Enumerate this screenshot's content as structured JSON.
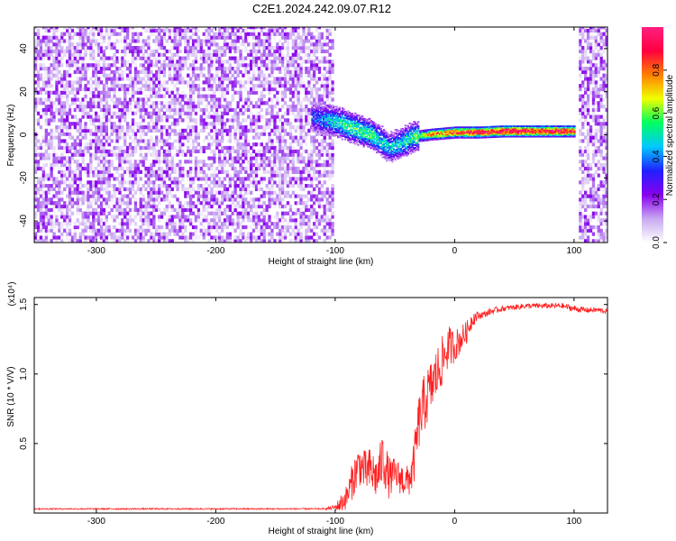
{
  "title": "C2E1.2024.242.09.07.R12",
  "chart_data": [
    {
      "type": "heatmap",
      "xlabel": "Height of straight line (km)",
      "ylabel": "Frequency (Hz)",
      "xlim": [
        -352,
        128
      ],
      "ylim": [
        -50,
        50
      ],
      "x_ticks": [
        -300,
        -200,
        -100,
        0,
        100
      ],
      "x_tick_labels": [
        "-300",
        "-200",
        "-100",
        "0",
        "100"
      ],
      "y_ticks": [
        -40,
        -20,
        0,
        20,
        40
      ],
      "y_tick_labels": [
        "-40",
        "-20",
        "0",
        "20",
        "40"
      ],
      "colorbar": {
        "label": "Normalized spectral amplitude",
        "range": [
          0,
          1
        ],
        "ticks": [
          0.0,
          0.2,
          0.4,
          0.6,
          0.8
        ],
        "tick_labels": [
          "0.0",
          "0.2",
          "0.4",
          "0.6",
          "0.8"
        ],
        "colormap": [
          "#ffffff",
          "#c8a8f0",
          "#8800ee",
          "#2020ff",
          "#00c8ff",
          "#00ff60",
          "#f0ff00",
          "#ff8000",
          "#ff0040",
          "#ff2080"
        ]
      },
      "regions": [
        {
          "x": [
            -352,
            -103
          ],
          "freq": [
            -50,
            50
          ],
          "amplitude": 0.12,
          "pattern": "broadband noise"
        },
        {
          "x": [
            -103,
            103
          ],
          "freq": [
            -50,
            50
          ],
          "amplitude": 0.0,
          "pattern": "background"
        },
        {
          "x": [
            104,
            128
          ],
          "freq": [
            -50,
            50
          ],
          "amplitude": 0.12,
          "pattern": "broadband noise"
        }
      ],
      "ridge": {
        "x": [
          -120,
          -100,
          -85,
          -70,
          -55,
          -45,
          -35,
          -20,
          0,
          20,
          40,
          60,
          80,
          100
        ],
        "freq": [
          8,
          6,
          3,
          0,
          -6,
          -4,
          -1,
          0,
          1,
          1,
          1.5,
          1.5,
          1.5,
          1.5
        ],
        "amplitude": [
          0.35,
          0.5,
          0.55,
          0.55,
          0.45,
          0.5,
          0.55,
          0.75,
          0.85,
          0.9,
          0.95,
          0.95,
          0.95,
          0.9
        ]
      },
      "grid": false
    },
    {
      "type": "line",
      "xlabel": "Height of straight line (km)",
      "ylabel": "SNR (10 * V/V)",
      "y_multiplier": "(x10⁴)",
      "xlim": [
        -352,
        128
      ],
      "ylim": [
        0,
        15500
      ],
      "x_ticks": [
        -300,
        -200,
        -100,
        0,
        100
      ],
      "x_tick_labels": [
        "-300",
        "-200",
        "-100",
        "0",
        "100"
      ],
      "y_ticks": [
        5000,
        10000,
        15000
      ],
      "y_tick_labels": [
        "0.5",
        "1.0",
        "1.5"
      ],
      "series": [
        {
          "color": "#ff2020",
          "x": [
            -352,
            -300,
            -200,
            -110,
            -100,
            -95,
            -90,
            -85,
            -80,
            -75,
            -70,
            -65,
            -60,
            -55,
            -50,
            -45,
            -40,
            -35,
            -30,
            -25,
            -20,
            -15,
            -10,
            -5,
            0,
            5,
            10,
            15,
            20,
            25,
            30,
            40,
            50,
            60,
            70,
            80,
            90,
            100,
            110,
            120,
            128
          ],
          "values": [
            300,
            300,
            300,
            300,
            400,
            700,
            1200,
            2500,
            3500,
            3000,
            3000,
            2500,
            4000,
            2500,
            2800,
            2500,
            2200,
            3000,
            6500,
            8000,
            9000,
            10000,
            11000,
            12000,
            12000,
            12500,
            13000,
            14000,
            14200,
            14300,
            14500,
            14700,
            14800,
            14900,
            14900,
            14900,
            14900,
            14700,
            14600,
            14600,
            14500
          ],
          "noise": [
            50,
            50,
            50,
            50,
            200,
            700,
            900,
            1400,
            1500,
            1500,
            1800,
            1500,
            2000,
            1500,
            1200,
            1200,
            1200,
            1600,
            2000,
            2200,
            2000,
            2000,
            1800,
            1500,
            1200,
            1000,
            800,
            600,
            300,
            250,
            250,
            200,
            200,
            200,
            200,
            200,
            200,
            250,
            200,
            200,
            200
          ]
        }
      ],
      "grid": false
    }
  ]
}
